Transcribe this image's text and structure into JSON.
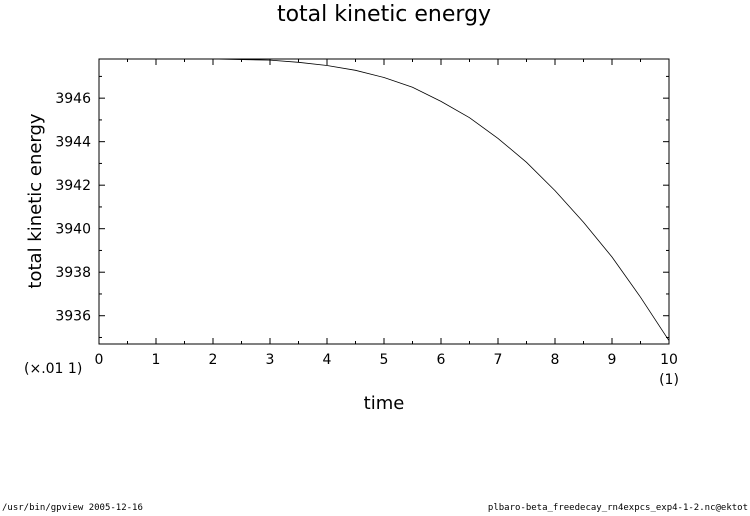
{
  "chart_data": {
    "type": "line",
    "title": "total kinetic energy",
    "xlabel": "time",
    "ylabel": "total kinetic energy",
    "xlim": [
      0,
      10
    ],
    "ylim": [
      3934.7,
      3947.8
    ],
    "x_scale_note": "(×.01 1)",
    "x_unit_note": "(1)",
    "x_ticks": [
      0,
      1,
      2,
      3,
      4,
      5,
      6,
      7,
      8,
      9,
      10
    ],
    "y_ticks": [
      3936,
      3938,
      3940,
      3942,
      3944,
      3946
    ],
    "grid": false,
    "series": [
      {
        "x": [
          0,
          1,
          2,
          3,
          3.5,
          4,
          4.5,
          5,
          5.5,
          6,
          6.5,
          7,
          7.5,
          8,
          8.5,
          9,
          9.5,
          10
        ],
        "y": [
          3947.9,
          3947.9,
          3947.85,
          3947.75,
          3947.65,
          3947.5,
          3947.28,
          3946.95,
          3946.5,
          3945.85,
          3945.1,
          3944.15,
          3943.05,
          3941.75,
          3940.3,
          3938.7,
          3936.85,
          3934.85
        ]
      }
    ]
  },
  "footer": {
    "left": "/usr/bin/gpview  2005-12-16",
    "right": "plbaro-beta_freedecay_rn4expcs_exp4-1-2.nc@ektot"
  }
}
